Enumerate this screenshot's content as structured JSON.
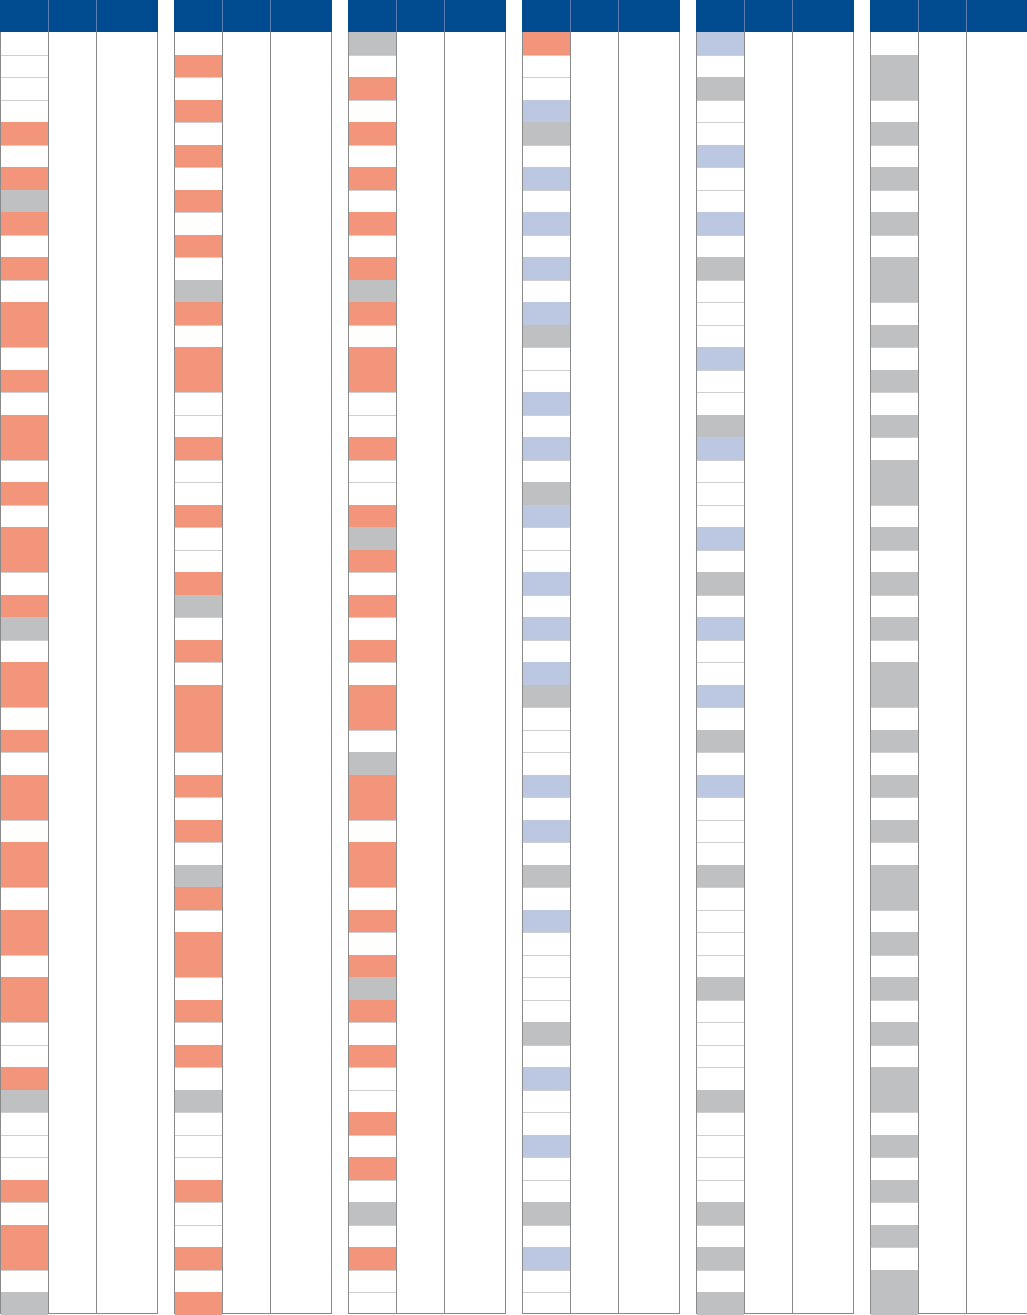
{
  "colors": {
    "header": "#004a8f",
    "orange": "#f2957a",
    "gray": "#bfc0c2",
    "blue": "#bcc8e2"
  },
  "panels": [
    {
      "name": "panel-1",
      "blocks": [
        [
          4,
          1,
          "o"
        ],
        [
          6,
          1,
          "o"
        ],
        [
          7,
          1,
          "g"
        ],
        [
          8,
          1,
          "o"
        ],
        [
          10,
          1,
          "o"
        ],
        [
          12,
          2,
          "o"
        ],
        [
          15,
          1,
          "o"
        ],
        [
          17,
          2,
          "o"
        ],
        [
          20,
          1,
          "o"
        ],
        [
          22,
          2,
          "o"
        ],
        [
          25,
          1,
          "o"
        ],
        [
          26,
          1,
          "g"
        ],
        [
          28,
          2,
          "o"
        ],
        [
          31,
          1,
          "o"
        ],
        [
          33,
          2,
          "o"
        ],
        [
          36,
          2,
          "o"
        ],
        [
          39,
          2,
          "o"
        ],
        [
          42,
          2,
          "o"
        ],
        [
          46,
          1,
          "o"
        ],
        [
          47,
          1,
          "g"
        ],
        [
          51,
          1,
          "o"
        ],
        [
          53,
          2,
          "o"
        ],
        [
          56,
          1,
          "g"
        ]
      ]
    },
    {
      "name": "panel-2",
      "blocks": [
        [
          1,
          1,
          "o"
        ],
        [
          3,
          1,
          "o"
        ],
        [
          5,
          1,
          "o"
        ],
        [
          7,
          1,
          "o"
        ],
        [
          9,
          1,
          "o"
        ],
        [
          11,
          1,
          "g"
        ],
        [
          12,
          1,
          "o"
        ],
        [
          14,
          2,
          "o"
        ],
        [
          18,
          1,
          "o"
        ],
        [
          21,
          1,
          "o"
        ],
        [
          24,
          1,
          "o"
        ],
        [
          25,
          1,
          "g"
        ],
        [
          27,
          1,
          "o"
        ],
        [
          29,
          3,
          "o"
        ],
        [
          33,
          1,
          "o"
        ],
        [
          35,
          1,
          "o"
        ],
        [
          37,
          1,
          "g"
        ],
        [
          38,
          1,
          "o"
        ],
        [
          40,
          2,
          "o"
        ],
        [
          43,
          1,
          "o"
        ],
        [
          45,
          1,
          "o"
        ],
        [
          47,
          1,
          "g"
        ],
        [
          51,
          1,
          "o"
        ],
        [
          54,
          1,
          "o"
        ],
        [
          56,
          1,
          "o"
        ]
      ]
    },
    {
      "name": "panel-3",
      "blocks": [
        [
          0,
          1,
          "g"
        ],
        [
          2,
          1,
          "o"
        ],
        [
          4,
          1,
          "o"
        ],
        [
          6,
          1,
          "o"
        ],
        [
          8,
          1,
          "o"
        ],
        [
          10,
          1,
          "o"
        ],
        [
          11,
          1,
          "g"
        ],
        [
          12,
          1,
          "o"
        ],
        [
          14,
          2,
          "o"
        ],
        [
          18,
          1,
          "o"
        ],
        [
          21,
          1,
          "o"
        ],
        [
          22,
          1,
          "g"
        ],
        [
          23,
          1,
          "o"
        ],
        [
          25,
          1,
          "o"
        ],
        [
          27,
          1,
          "o"
        ],
        [
          29,
          2,
          "o"
        ],
        [
          32,
          1,
          "g"
        ],
        [
          33,
          2,
          "o"
        ],
        [
          36,
          2,
          "o"
        ],
        [
          39,
          1,
          "o"
        ],
        [
          41,
          1,
          "o"
        ],
        [
          42,
          1,
          "g"
        ],
        [
          43,
          1,
          "o"
        ],
        [
          45,
          1,
          "o"
        ],
        [
          48,
          1,
          "o"
        ],
        [
          50,
          1,
          "o"
        ],
        [
          52,
          1,
          "g"
        ],
        [
          54,
          1,
          "o"
        ]
      ]
    },
    {
      "name": "panel-4",
      "blocks": [
        [
          0,
          1,
          "o"
        ],
        [
          3,
          1,
          "b"
        ],
        [
          4,
          1,
          "g"
        ],
        [
          6,
          1,
          "b"
        ],
        [
          8,
          1,
          "b"
        ],
        [
          10,
          1,
          "b"
        ],
        [
          12,
          1,
          "b"
        ],
        [
          13,
          1,
          "g"
        ],
        [
          16,
          1,
          "b"
        ],
        [
          18,
          1,
          "b"
        ],
        [
          20,
          1,
          "g"
        ],
        [
          21,
          1,
          "b"
        ],
        [
          24,
          1,
          "b"
        ],
        [
          26,
          1,
          "b"
        ],
        [
          28,
          1,
          "b"
        ],
        [
          29,
          1,
          "g"
        ],
        [
          33,
          1,
          "b"
        ],
        [
          35,
          1,
          "b"
        ],
        [
          37,
          1,
          "g"
        ],
        [
          39,
          1,
          "b"
        ],
        [
          44,
          1,
          "g"
        ],
        [
          46,
          1,
          "b"
        ],
        [
          49,
          1,
          "b"
        ],
        [
          52,
          1,
          "g"
        ],
        [
          54,
          1,
          "b"
        ]
      ]
    },
    {
      "name": "panel-5",
      "blocks": [
        [
          0,
          1,
          "b"
        ],
        [
          2,
          1,
          "g"
        ],
        [
          5,
          1,
          "b"
        ],
        [
          8,
          1,
          "b"
        ],
        [
          10,
          1,
          "g"
        ],
        [
          14,
          1,
          "b"
        ],
        [
          17,
          1,
          "g"
        ],
        [
          18,
          1,
          "b"
        ],
        [
          22,
          1,
          "b"
        ],
        [
          24,
          1,
          "g"
        ],
        [
          26,
          1,
          "b"
        ],
        [
          29,
          1,
          "b"
        ],
        [
          31,
          1,
          "g"
        ],
        [
          33,
          1,
          "b"
        ],
        [
          37,
          1,
          "g"
        ],
        [
          42,
          1,
          "g"
        ],
        [
          47,
          1,
          "g"
        ],
        [
          52,
          1,
          "g"
        ],
        [
          54,
          1,
          "g"
        ],
        [
          56,
          1,
          "g"
        ]
      ]
    },
    {
      "name": "panel-6",
      "blocks": [
        [
          1,
          2,
          "g"
        ],
        [
          4,
          1,
          "g"
        ],
        [
          6,
          1,
          "g"
        ],
        [
          8,
          1,
          "g"
        ],
        [
          10,
          2,
          "g"
        ],
        [
          13,
          1,
          "g"
        ],
        [
          15,
          1,
          "g"
        ],
        [
          17,
          1,
          "g"
        ],
        [
          19,
          2,
          "g"
        ],
        [
          22,
          1,
          "g"
        ],
        [
          24,
          1,
          "g"
        ],
        [
          26,
          1,
          "g"
        ],
        [
          28,
          2,
          "g"
        ],
        [
          31,
          1,
          "g"
        ],
        [
          33,
          1,
          "g"
        ],
        [
          35,
          1,
          "g"
        ],
        [
          37,
          2,
          "g"
        ],
        [
          40,
          1,
          "g"
        ],
        [
          42,
          1,
          "g"
        ],
        [
          44,
          1,
          "g"
        ],
        [
          46,
          2,
          "g"
        ],
        [
          49,
          1,
          "g"
        ],
        [
          51,
          1,
          "g"
        ],
        [
          53,
          1,
          "g"
        ],
        [
          55,
          2,
          "g"
        ]
      ]
    }
  ]
}
